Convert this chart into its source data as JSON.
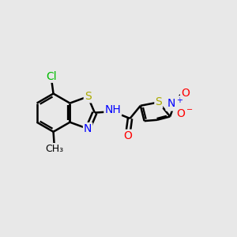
{
  "background_color": "#e8e8e8",
  "atom_colors": {
    "C": "#000000",
    "N": "#0000ff",
    "O": "#ff0000",
    "S": "#aaaa00",
    "Cl": "#00bb00",
    "H": "#000000"
  },
  "bond_color": "#000000",
  "bond_width": 1.8,
  "font_size": 10,
  "fig_size": [
    3.0,
    3.0
  ],
  "dpi": 100
}
